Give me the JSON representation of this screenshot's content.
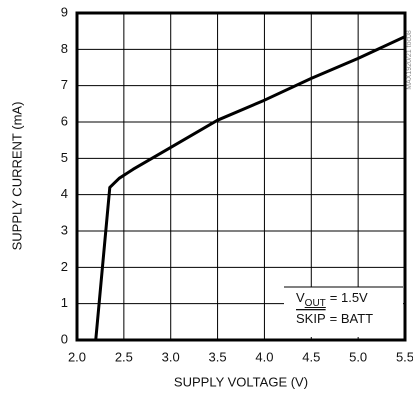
{
  "chart_data": {
    "type": "line",
    "xlabel": "SUPPLY VOLTAGE (V)",
    "ylabel": "SUPPLY CURRENT (mA)",
    "side_note": "MAX1920/21 toc08",
    "annotation": {
      "v": "V",
      "sub": "OUT",
      "vout_value": "= 1.5V",
      "skip": "SKIP",
      "skip_value": "= BATT"
    },
    "x": [
      2.2,
      2.35,
      2.45,
      2.6,
      3.0,
      3.5,
      4.0,
      4.5,
      5.0,
      5.5
    ],
    "series": [
      {
        "name": "supply current",
        "color": "#000000",
        "values": [
          0,
          4.2,
          4.45,
          4.7,
          5.3,
          6.05,
          6.6,
          7.2,
          7.75,
          8.35
        ]
      }
    ],
    "xlim": [
      2,
      5.5
    ],
    "xticks": [
      {
        "value": 2,
        "label": "2.0"
      },
      2.5,
      {
        "value": 3,
        "label": "3.0"
      },
      3.5,
      {
        "value": 4,
        "label": "4.0"
      },
      4.5,
      {
        "value": 5,
        "label": "5.0"
      },
      5.5
    ],
    "ylim": [
      0,
      9
    ],
    "yticks": [
      0,
      1,
      2,
      3,
      4,
      5,
      6,
      7,
      8,
      9
    ],
    "grid": true
  }
}
